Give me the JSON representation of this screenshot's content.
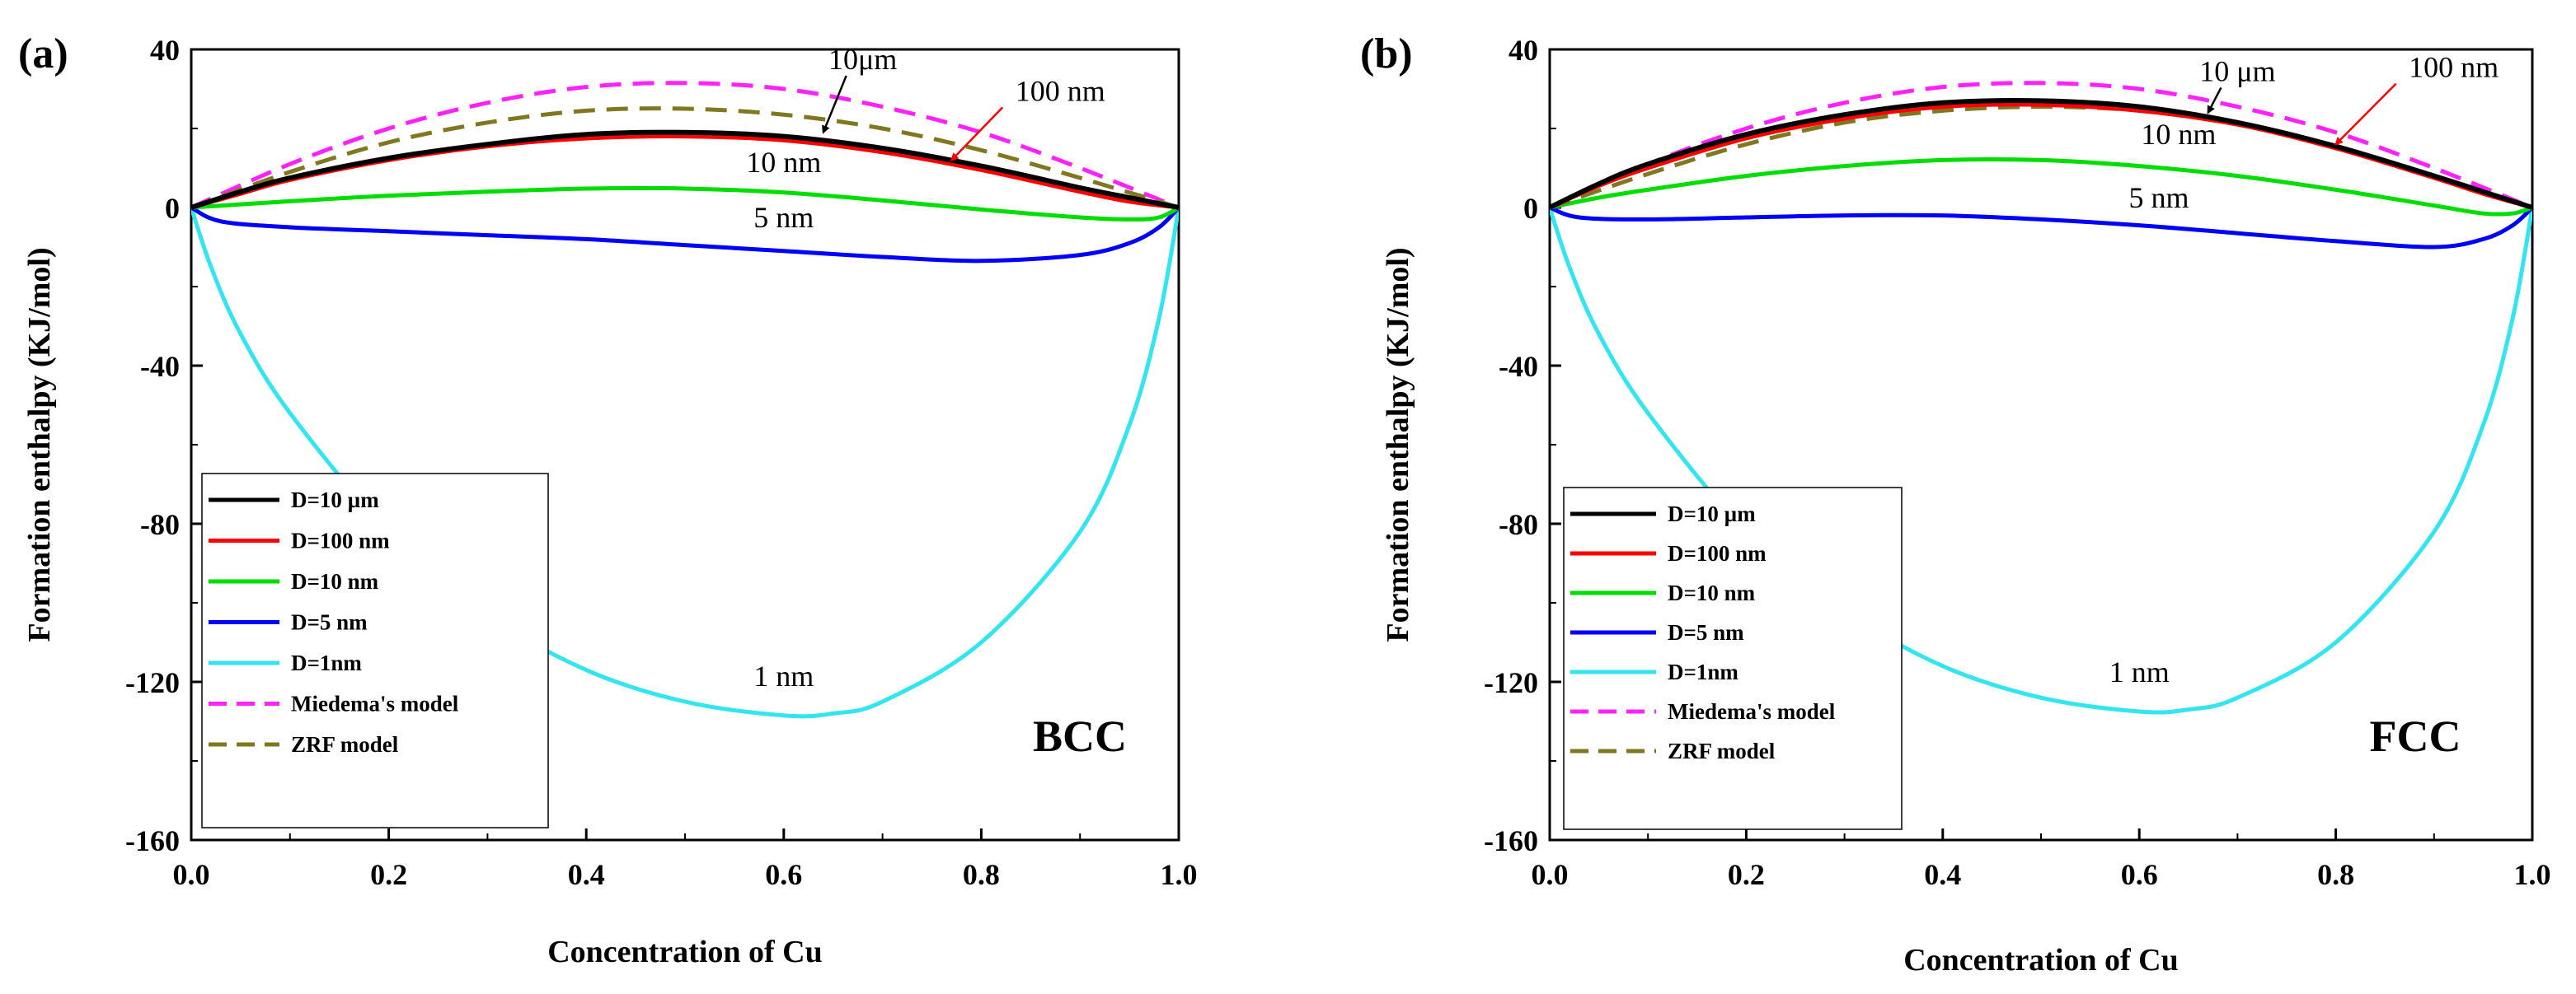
{
  "chart_data": [
    {
      "type": "line",
      "panel_label": "(a)",
      "structure_label": "BCC",
      "xlabel": "Concentration of Cu",
      "ylabel": "Formation enthalpy (KJ/mol)",
      "xlim": [
        0.0,
        1.0
      ],
      "ylim": [
        -160,
        40
      ],
      "xticks": [
        "0.0",
        "0.2",
        "0.4",
        "0.6",
        "0.8",
        "1.0"
      ],
      "yticks": [
        "40",
        "0",
        "-40",
        "-80",
        "-120",
        "-160"
      ],
      "legend_position": "lower-left",
      "series": [
        {
          "name": "D=10 µm",
          "color": "#000000",
          "dash": "solid",
          "x": [
            0,
            0.05,
            0.1,
            0.2,
            0.3,
            0.4,
            0.5,
            0.6,
            0.7,
            0.8,
            0.9,
            0.95,
            1.0
          ],
          "y": [
            0,
            4,
            7.5,
            12.5,
            16,
            18.5,
            19,
            18,
            15,
            10.5,
            5,
            2.5,
            0
          ]
        },
        {
          "name": "D=100 nm",
          "color": "#ff0000",
          "dash": "solid",
          "x": [
            0,
            0.05,
            0.1,
            0.2,
            0.3,
            0.4,
            0.5,
            0.6,
            0.7,
            0.8,
            0.9,
            0.95,
            1.0
          ],
          "y": [
            0,
            3.5,
            7,
            12,
            15.5,
            17.5,
            18,
            17,
            14,
            9.5,
            4,
            1.5,
            0
          ]
        },
        {
          "name": "D=10 nm",
          "color": "#00dd00",
          "dash": "solid",
          "x": [
            0,
            0.05,
            0.1,
            0.2,
            0.3,
            0.4,
            0.5,
            0.6,
            0.7,
            0.8,
            0.9,
            0.95,
            0.98,
            1.0
          ],
          "y": [
            0,
            0.8,
            1.6,
            3,
            4,
            4.8,
            4.8,
            3.8,
            1.8,
            -0.5,
            -2.5,
            -3,
            -2.5,
            0
          ]
        },
        {
          "name": "D=5 nm",
          "color": "#0000ff",
          "dash": "solid",
          "x": [
            0,
            0.03,
            0.1,
            0.2,
            0.3,
            0.4,
            0.5,
            0.6,
            0.7,
            0.8,
            0.9,
            0.95,
            0.98,
            1.0
          ],
          "y": [
            0,
            -3.5,
            -5,
            -6,
            -7,
            -8,
            -9.5,
            -11,
            -12.5,
            -13.5,
            -12,
            -9,
            -5,
            0
          ]
        },
        {
          "name": "D=1nm",
          "color": "#33e5f0",
          "dash": "solid",
          "x": [
            0,
            0.02,
            0.05,
            0.1,
            0.2,
            0.3,
            0.4,
            0.5,
            0.6,
            0.65,
            0.7,
            0.8,
            0.9,
            0.95,
            0.98,
            1.0
          ],
          "y": [
            0,
            -15,
            -32,
            -52,
            -82,
            -103,
            -117,
            -125,
            -128.5,
            -128,
            -125,
            -110,
            -82,
            -55,
            -28,
            0
          ]
        },
        {
          "name": "Miedema's model",
          "color": "#ff22ff",
          "dash": "dashed",
          "x": [
            0,
            0.1,
            0.2,
            0.3,
            0.4,
            0.5,
            0.6,
            0.7,
            0.8,
            0.9,
            1.0
          ],
          "y": [
            0,
            11,
            20,
            26.5,
            30.5,
            31.5,
            30,
            25.5,
            19,
            10,
            0
          ]
        },
        {
          "name": "ZRF  model",
          "color": "#807820",
          "dash": "dashed",
          "x": [
            0,
            0.1,
            0.2,
            0.3,
            0.4,
            0.5,
            0.6,
            0.7,
            0.8,
            0.9,
            1.0
          ],
          "y": [
            0,
            9,
            16.5,
            21.5,
            24.5,
            25,
            23.5,
            20,
            14.5,
            7.5,
            0
          ]
        }
      ],
      "annotations": [
        {
          "text": "10μm",
          "x": 0.68,
          "y": 35,
          "arrow_to": [
            0.64,
            19
          ]
        },
        {
          "text": "100 nm",
          "x": 0.88,
          "y": 27,
          "arrow_to": [
            0.77,
            12
          ]
        },
        {
          "text": "10 nm",
          "x": 0.6,
          "y": 9,
          "arrow_to": null
        },
        {
          "text": "5 nm",
          "x": 0.6,
          "y": -5,
          "arrow_to": null
        },
        {
          "text": "1 nm",
          "x": 0.6,
          "y": -121,
          "arrow_to": null
        }
      ]
    },
    {
      "type": "line",
      "panel_label": "(b)",
      "structure_label": "FCC",
      "xlabel": "Concentration of Cu",
      "ylabel": "Formation enthalpy (KJ/mol)",
      "xlim": [
        0.0,
        1.0
      ],
      "ylim": [
        -160,
        40
      ],
      "xticks": [
        "0.0",
        "0.2",
        "0.4",
        "0.6",
        "0.8",
        "1.0"
      ],
      "yticks": [
        "40",
        "0",
        "-40",
        "-80",
        "-120",
        "-160"
      ],
      "legend_position": "lower-left",
      "series": [
        {
          "name": "D=10 µm",
          "color": "#000000",
          "dash": "solid",
          "x": [
            0,
            0.05,
            0.1,
            0.2,
            0.3,
            0.4,
            0.5,
            0.6,
            0.7,
            0.8,
            0.9,
            0.95,
            1.0
          ],
          "y": [
            0,
            6,
            11,
            18.5,
            23.5,
            26.5,
            27,
            25.5,
            21.5,
            15.5,
            8,
            4,
            0
          ]
        },
        {
          "name": "D=100 nm",
          "color": "#ff0000",
          "dash": "solid",
          "x": [
            0,
            0.05,
            0.1,
            0.2,
            0.3,
            0.4,
            0.5,
            0.6,
            0.7,
            0.8,
            0.9,
            0.95,
            1.0
          ],
          "y": [
            0,
            5.5,
            10,
            17.5,
            22.5,
            25.5,
            26,
            24.5,
            21,
            15,
            7.5,
            3.5,
            0
          ]
        },
        {
          "name": "D=10 nm",
          "color": "#00dd00",
          "dash": "solid",
          "x": [
            0,
            0.05,
            0.1,
            0.2,
            0.3,
            0.4,
            0.5,
            0.6,
            0.7,
            0.8,
            0.9,
            0.95,
            0.98,
            1.0
          ],
          "y": [
            0,
            2.5,
            4.5,
            8,
            10.5,
            12,
            12,
            10.5,
            8,
            4.5,
            0.5,
            -1.5,
            -1.5,
            0
          ]
        },
        {
          "name": "D=5 nm",
          "color": "#0000ff",
          "dash": "solid",
          "x": [
            0,
            0.03,
            0.1,
            0.2,
            0.3,
            0.4,
            0.5,
            0.6,
            0.7,
            0.8,
            0.9,
            0.95,
            0.98,
            1.0
          ],
          "y": [
            0,
            -2.5,
            -3,
            -2.5,
            -2,
            -2,
            -3,
            -4.5,
            -6.5,
            -8.5,
            -10,
            -8,
            -4.5,
            0
          ]
        },
        {
          "name": "D=1nm",
          "color": "#33e5f0",
          "dash": "solid",
          "x": [
            0,
            0.02,
            0.05,
            0.1,
            0.2,
            0.3,
            0.4,
            0.5,
            0.6,
            0.65,
            0.7,
            0.8,
            0.9,
            0.95,
            0.98,
            1.0
          ],
          "y": [
            0,
            -15,
            -32,
            -52,
            -82,
            -102,
            -116,
            -124,
            -127.5,
            -127,
            -124,
            -110,
            -82,
            -55,
            -28,
            0
          ]
        },
        {
          "name": "Miedema's model",
          "color": "#ff22ff",
          "dash": "dashed",
          "x": [
            0,
            0.1,
            0.2,
            0.3,
            0.4,
            0.5,
            0.6,
            0.7,
            0.8,
            0.9,
            1.0
          ],
          "y": [
            0,
            11,
            20,
            26.5,
            30.5,
            31.5,
            30,
            25.5,
            19,
            10,
            0
          ]
        },
        {
          "name": "ZRF  model",
          "color": "#807820",
          "dash": "dashed",
          "x": [
            0,
            0.1,
            0.2,
            0.3,
            0.4,
            0.5,
            0.6,
            0.7,
            0.8,
            0.9,
            1.0
          ],
          "y": [
            0,
            8.5,
            16,
            21.5,
            24.5,
            25.5,
            24.5,
            21,
            15.5,
            8,
            0
          ]
        }
      ],
      "annotations": [
        {
          "text": "10 μm",
          "x": 0.7,
          "y": 32,
          "arrow_to": [
            0.67,
            24
          ]
        },
        {
          "text": "100 nm",
          "x": 0.92,
          "y": 33,
          "arrow_to": [
            0.8,
            16
          ]
        },
        {
          "text": "10 nm",
          "x": 0.64,
          "y": 16,
          "arrow_to": null
        },
        {
          "text": "5 nm",
          "x": 0.62,
          "y": 0,
          "arrow_to": null
        },
        {
          "text": "1 nm",
          "x": 0.6,
          "y": -120,
          "arrow_to": null
        }
      ]
    }
  ]
}
